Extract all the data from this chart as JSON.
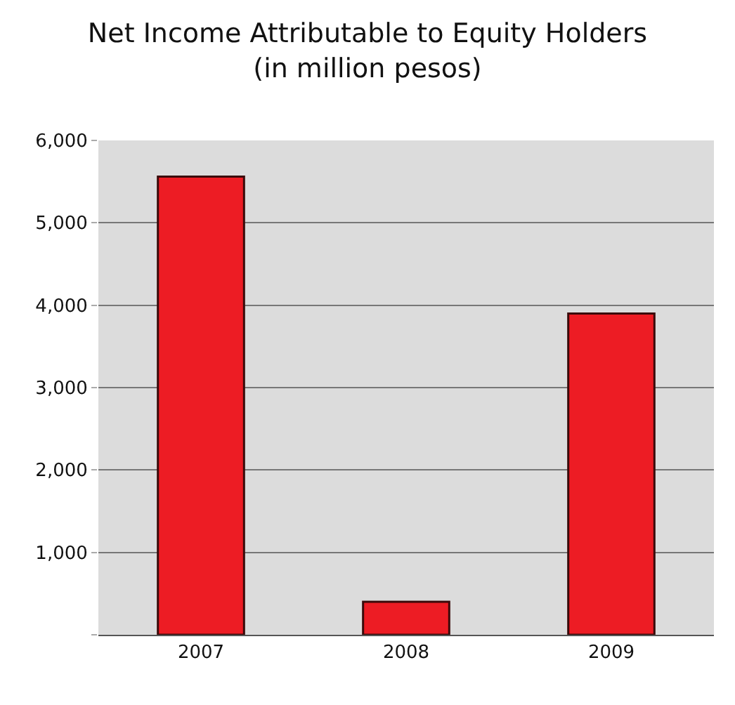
{
  "chart_data": {
    "type": "bar",
    "title": "Net Income Attributable to Equity Holders",
    "subtitle": "(in million pesos)",
    "categories": [
      "2007",
      "2008",
      "2009"
    ],
    "values": [
      5560,
      400,
      3900
    ],
    "color": "#ed1c24",
    "ylim": [
      0,
      6000
    ],
    "yticks": [
      {
        "value": 0,
        "label": null
      },
      {
        "value": 1000,
        "label": "1,000"
      },
      {
        "value": 2000,
        "label": "2,000"
      },
      {
        "value": 3000,
        "label": "3,000"
      },
      {
        "value": 4000,
        "label": "4,000"
      },
      {
        "value": 5000,
        "label": "5,000"
      },
      {
        "value": 6000,
        "label": "6,000"
      }
    ],
    "grid": "y"
  }
}
